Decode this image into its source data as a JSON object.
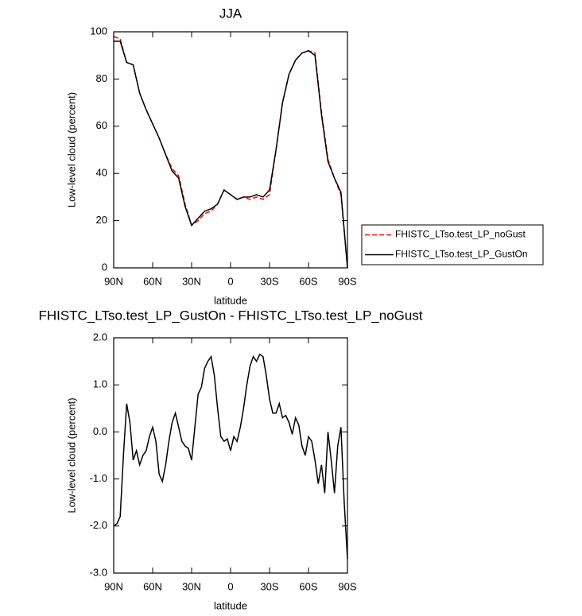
{
  "chart_data": [
    {
      "type": "line",
      "title": "JJA",
      "xlabel": "latitude",
      "ylabel": "Low-level cloud (percent)",
      "x": [
        90,
        85,
        80,
        75,
        70,
        65,
        60,
        55,
        50,
        45,
        40,
        35,
        30,
        25,
        20,
        15,
        10,
        5,
        0,
        -5,
        -10,
        -15,
        -20,
        -25,
        -30,
        -35,
        -40,
        -45,
        -50,
        -55,
        -60,
        -65,
        -70,
        -75,
        -80,
        -85,
        -90
      ],
      "series": [
        {
          "name": "FHISTC_LTso.test_LP_noGust",
          "color": "#ff0000",
          "dash": true,
          "values": [
            98,
            97,
            87,
            86,
            74,
            67,
            61,
            55,
            48,
            42,
            39,
            27,
            18,
            20,
            23,
            24,
            27,
            33,
            31,
            29,
            30,
            29,
            30,
            29,
            31,
            50,
            70,
            82,
            88,
            91,
            92,
            91,
            66,
            46,
            38,
            31,
            0
          ]
        },
        {
          "name": "FHISTC_LTso.test_LP_GustOn",
          "color": "#000000",
          "dash": false,
          "values": [
            96,
            96,
            87,
            86,
            74,
            67,
            61,
            55,
            48,
            41,
            38,
            26,
            18,
            21,
            24,
            25,
            27,
            33,
            31,
            29,
            30,
            30,
            31,
            30,
            33,
            50,
            70,
            82,
            88,
            91,
            92,
            90,
            65,
            45,
            38,
            32,
            0
          ]
        }
      ],
      "xlim": [
        90,
        -90
      ],
      "xticks": [
        {
          "value": 90,
          "label": "90N"
        },
        {
          "value": 60,
          "label": "60N"
        },
        {
          "value": 30,
          "label": "30N"
        },
        {
          "value": 0,
          "label": "0"
        },
        {
          "value": -30,
          "label": "30S"
        },
        {
          "value": -60,
          "label": "60S"
        },
        {
          "value": -90,
          "label": "90S"
        }
      ],
      "ylim": [
        0,
        100
      ],
      "yticks": [
        0,
        20,
        40,
        60,
        80,
        100
      ],
      "legend": "outside-right"
    },
    {
      "type": "line",
      "title": "FHISTC_LTso.test_LP_GustOn - FHISTC_LTso.test_LP_noGust",
      "xlabel": "latitude",
      "ylabel": "Low-level cloud (percent)",
      "x": [
        90,
        87.5,
        85,
        82.5,
        80,
        77.5,
        75,
        72.5,
        70,
        67.5,
        65,
        62.5,
        60,
        57.5,
        55,
        52.5,
        50,
        47.5,
        45,
        42.5,
        40,
        37.5,
        35,
        32.5,
        30,
        27.5,
        25,
        22.5,
        20,
        17.5,
        15,
        12.5,
        10,
        7.5,
        5,
        2.5,
        0,
        -2.5,
        -5,
        -7.5,
        -10,
        -12.5,
        -15,
        -17.5,
        -20,
        -22.5,
        -25,
        -27.5,
        -30,
        -32.5,
        -35,
        -37.5,
        -40,
        -42.5,
        -45,
        -47.5,
        -50,
        -52.5,
        -55,
        -57.5,
        -60,
        -62.5,
        -65,
        -67.5,
        -70,
        -72.5,
        -75,
        -77.5,
        -80,
        -82.5,
        -85,
        -87.5,
        -90
      ],
      "series": [
        {
          "color": "#000000",
          "dash": false,
          "values": [
            -2.0,
            -1.95,
            -1.8,
            -0.5,
            0.6,
            0.2,
            -0.6,
            -0.4,
            -0.7,
            -0.5,
            -0.4,
            -0.1,
            0.1,
            -0.2,
            -0.9,
            -1.05,
            -0.7,
            -0.2,
            0.2,
            0.4,
            0.1,
            -0.2,
            -0.3,
            -0.35,
            -0.6,
            0.1,
            0.8,
            0.95,
            1.35,
            1.5,
            1.6,
            1.2,
            0.5,
            -0.1,
            -0.2,
            -0.15,
            -0.4,
            -0.1,
            -0.2,
            0.1,
            0.5,
            1.0,
            1.4,
            1.6,
            1.5,
            1.65,
            1.6,
            1.2,
            0.7,
            0.4,
            0.4,
            0.6,
            0.3,
            0.35,
            0.2,
            -0.05,
            0.3,
            0.15,
            -0.3,
            -0.5,
            -0.1,
            -0.2,
            -0.6,
            -1.1,
            -0.7,
            -1.3,
            0.0,
            -0.6,
            -1.3,
            -0.3,
            0.1,
            -1.5,
            -2.7
          ]
        }
      ],
      "xlim": [
        90,
        -90
      ],
      "xticks": [
        {
          "value": 90,
          "label": "90N"
        },
        {
          "value": 60,
          "label": "60N"
        },
        {
          "value": 30,
          "label": "30N"
        },
        {
          "value": 0,
          "label": "0"
        },
        {
          "value": -30,
          "label": "30S"
        },
        {
          "value": -60,
          "label": "60S"
        },
        {
          "value": -90,
          "label": "90S"
        }
      ],
      "ylim": [
        -3,
        2
      ],
      "yticks": [
        {
          "value": -3,
          "label": "-3.0"
        },
        {
          "value": -2,
          "label": "-2.0"
        },
        {
          "value": -1,
          "label": "-1.0"
        },
        {
          "value": 0,
          "label": "0.0"
        },
        {
          "value": 1,
          "label": "1.0"
        },
        {
          "value": 2,
          "label": "2.0"
        }
      ]
    }
  ]
}
